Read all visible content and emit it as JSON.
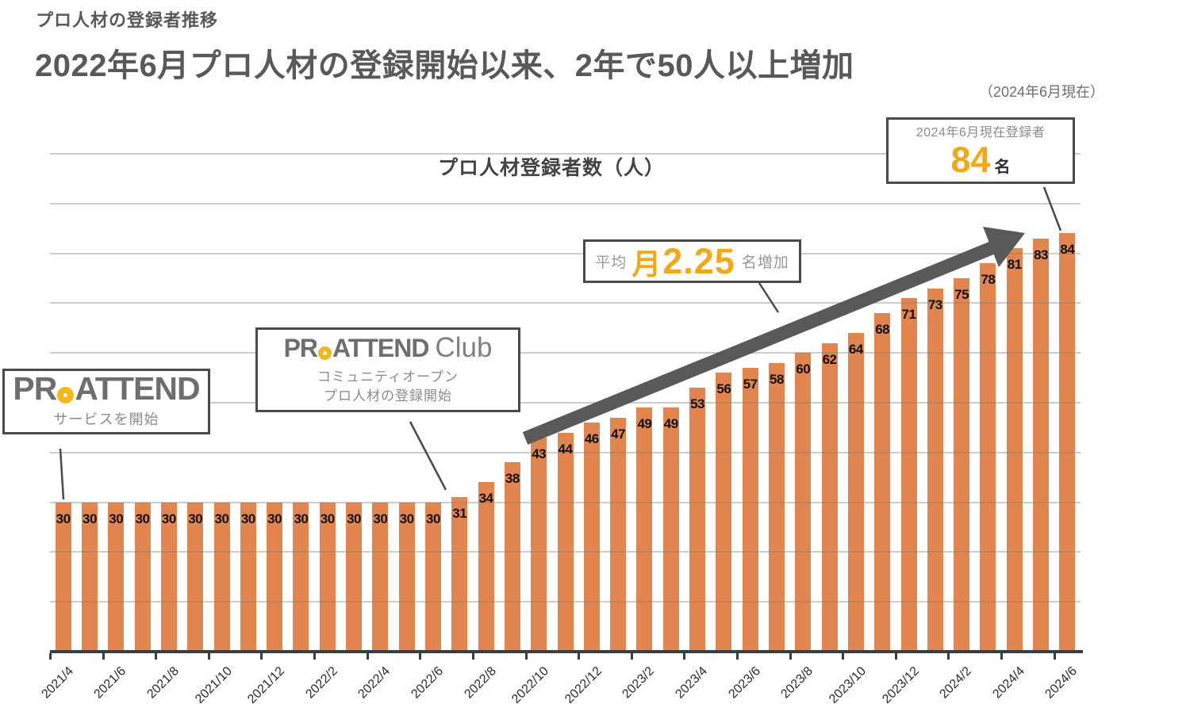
{
  "page": {
    "subtitle": "プロ人材の登録者推移",
    "title": "2022年6月プロ人材の登録開始以来、2年で50人以上増加",
    "date_note": "（2024年6月現在）"
  },
  "chart_data": {
    "type": "bar",
    "title": "プロ人材登録者数（人）",
    "x": [
      "2021/4",
      "2021/5",
      "2021/6",
      "2021/7",
      "2021/8",
      "2021/9",
      "2021/10",
      "2021/11",
      "2021/12",
      "2022/1",
      "2022/2",
      "2022/3",
      "2022/4",
      "2022/5",
      "2022/6",
      "2022/7",
      "2022/8",
      "2022/9",
      "2022/10",
      "2022/11",
      "2022/12",
      "2023/1",
      "2023/2",
      "2023/3",
      "2023/4",
      "2023/5",
      "2023/6",
      "2023/7",
      "2023/8",
      "2023/9",
      "2023/10",
      "2023/11",
      "2023/12",
      "2024/1",
      "2024/2",
      "2024/3",
      "2024/4",
      "2024/5",
      "2024/6"
    ],
    "values": [
      30,
      30,
      30,
      30,
      30,
      30,
      30,
      30,
      30,
      30,
      30,
      30,
      30,
      30,
      30,
      31,
      34,
      38,
      43,
      44,
      46,
      47,
      49,
      49,
      53,
      56,
      57,
      58,
      60,
      62,
      64,
      68,
      71,
      73,
      75,
      78,
      81,
      83,
      84
    ],
    "x_axis_labels": [
      "2021/4",
      "2021/6",
      "2021/8",
      "2021/10",
      "2021/12",
      "2022/2",
      "2022/4",
      "2022/6",
      "2022/8",
      "2022/10",
      "2022/12",
      "2023/2",
      "2023/4",
      "2023/6",
      "2023/8",
      "2023/10",
      "2023/12",
      "2024/2",
      "2024/4",
      "2024/6"
    ],
    "ylim": [
      0,
      110
    ],
    "gridline_interval": 10,
    "grid": "horizontal, light gray, drawn over bars",
    "legend": "none",
    "bar_color": "#E2854E"
  },
  "annotations": {
    "current": {
      "label": "2024年6月現在登録者",
      "value": "84",
      "unit": "名"
    },
    "average": {
      "prefix": "平均",
      "value_prefix": "月",
      "value": "2.25",
      "suffix": "名増加"
    },
    "service_start": {
      "logo_pr": "PR",
      "logo_attend": "ATTEND",
      "caption": "サービスを開始"
    },
    "club_open": {
      "logo_pr": "PR",
      "logo_attend": "ATTEND",
      "logo_club": "Club",
      "caption_line1": "コミュニティオープン",
      "caption_line2": "プロ人材の登録開始"
    }
  },
  "colors": {
    "bar_orange": "#E2854E",
    "accent_orange": "#F2A819",
    "logo_ring_yellow": "#F2B818",
    "title_gray": "#58595b",
    "arrow_gray": "#595959"
  }
}
